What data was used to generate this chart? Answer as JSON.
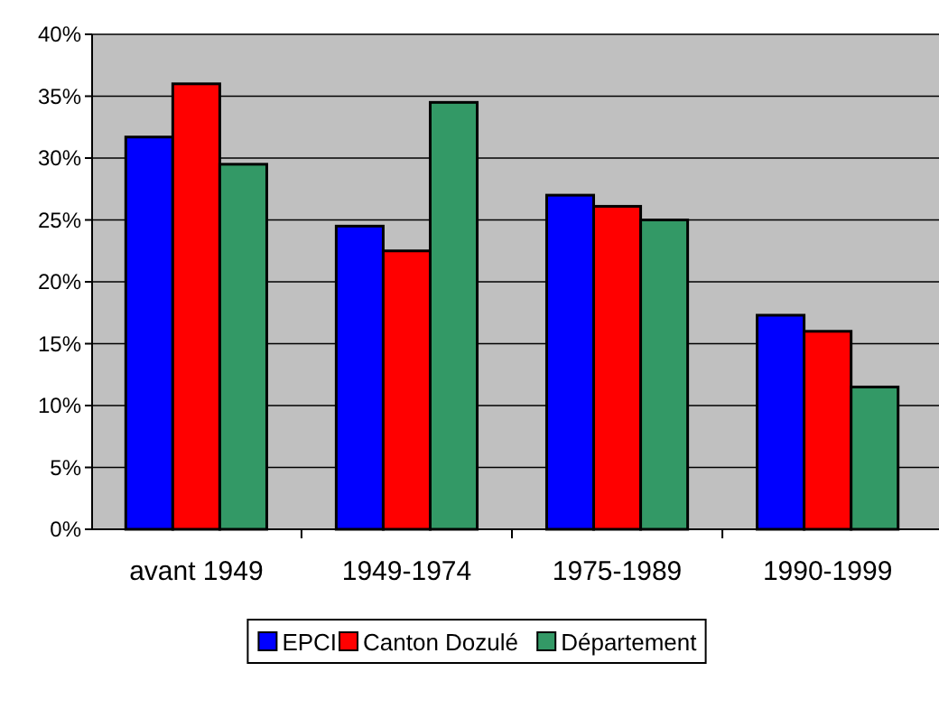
{
  "chart_data": {
    "type": "bar",
    "categories": [
      "avant 1949",
      "1949-1974",
      "1975-1989",
      "1990-1999"
    ],
    "series": [
      {
        "name": "EPCI",
        "color": "#0000ff",
        "values": [
          31.7,
          24.5,
          27,
          17.3
        ]
      },
      {
        "name": "Canton Dozulé",
        "color": "#ff0000",
        "values": [
          36,
          22.5,
          26.1,
          16
        ]
      },
      {
        "name": "Département",
        "color": "#339966",
        "values": [
          29.5,
          34.5,
          25,
          11.5
        ]
      }
    ],
    "ylim": [
      0,
      40
    ],
    "yticks": [
      {
        "value": 0,
        "label": "0%"
      },
      {
        "value": 5,
        "label": "5%"
      },
      {
        "value": 10,
        "label": "10%"
      },
      {
        "value": 15,
        "label": "15%"
      },
      {
        "value": 20,
        "label": "20%"
      },
      {
        "value": 25,
        "label": "25%"
      },
      {
        "value": 30,
        "label": "30%"
      },
      {
        "value": 35,
        "label": "35%"
      },
      {
        "value": 40,
        "label": "40%"
      }
    ],
    "grid": "y",
    "legend": "bottom"
  }
}
